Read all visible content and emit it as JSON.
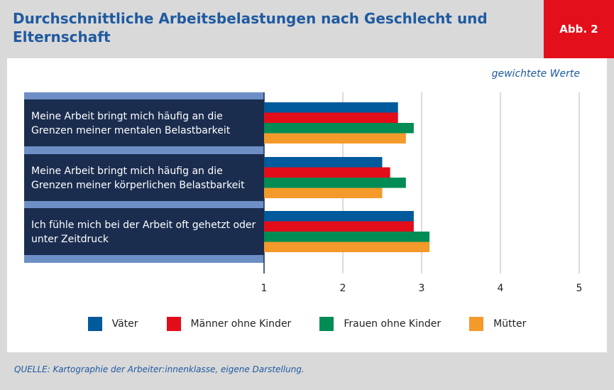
{
  "header": {
    "title": "Durchschnittliche Arbeitsbelastungen nach Geschlecht und Elternschaft",
    "badge": "Abb. 2"
  },
  "note": "gewichtete Werte",
  "source": "QUELLE: Kartographie der Arbeiter:innenklasse, eigene Darstellung.",
  "chart_data": {
    "type": "bar",
    "orientation": "horizontal",
    "categories": [
      "Meine Arbeit bringt mich häufig an die Grenzen meiner mentalen Belastbarkeit",
      "Meine Arbeit bringt mich häufig an die Grenzen meiner körperlichen Belastbarkeit",
      "Ich fühle mich bei der Arbeit oft gehetzt oder unter Zeitdruck"
    ],
    "series": [
      {
        "name": "Väter",
        "color": "#005a9c",
        "values": [
          2.7,
          2.5,
          2.9
        ]
      },
      {
        "name": "Männer ohne Kinder",
        "color": "#e30d1a",
        "values": [
          2.7,
          2.6,
          2.9
        ]
      },
      {
        "name": "Frauen ohne Kinder",
        "color": "#008c54",
        "values": [
          2.9,
          2.8,
          3.1
        ]
      },
      {
        "name": "Mütter",
        "color": "#f39a2a",
        "values": [
          2.8,
          2.5,
          3.1
        ]
      }
    ],
    "xlim": [
      1,
      5
    ],
    "xticks": [
      "1",
      "2",
      "3",
      "4",
      "5"
    ],
    "grid": true,
    "legend": "bottom"
  }
}
